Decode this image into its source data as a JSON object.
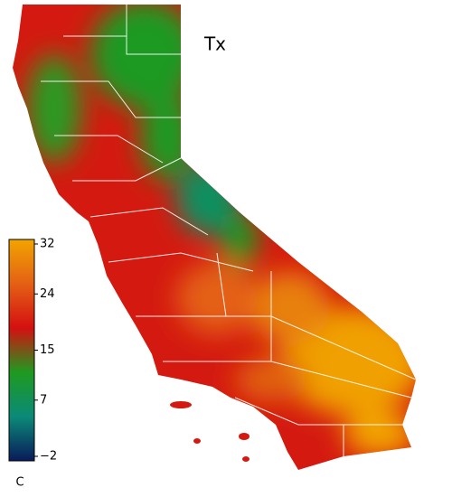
{
  "map": {
    "title": "Tx"
  },
  "colorbar": {
    "unit": "C",
    "range": [
      -2,
      32
    ],
    "ticks": [
      {
        "value": -2,
        "label": "−2"
      },
      7,
      15,
      24,
      32
    ],
    "colors": [
      "#0a1a5a",
      "#0b8a78",
      "#1f9a20",
      "#d41010",
      "#e46014",
      "#f2a400"
    ]
  }
}
